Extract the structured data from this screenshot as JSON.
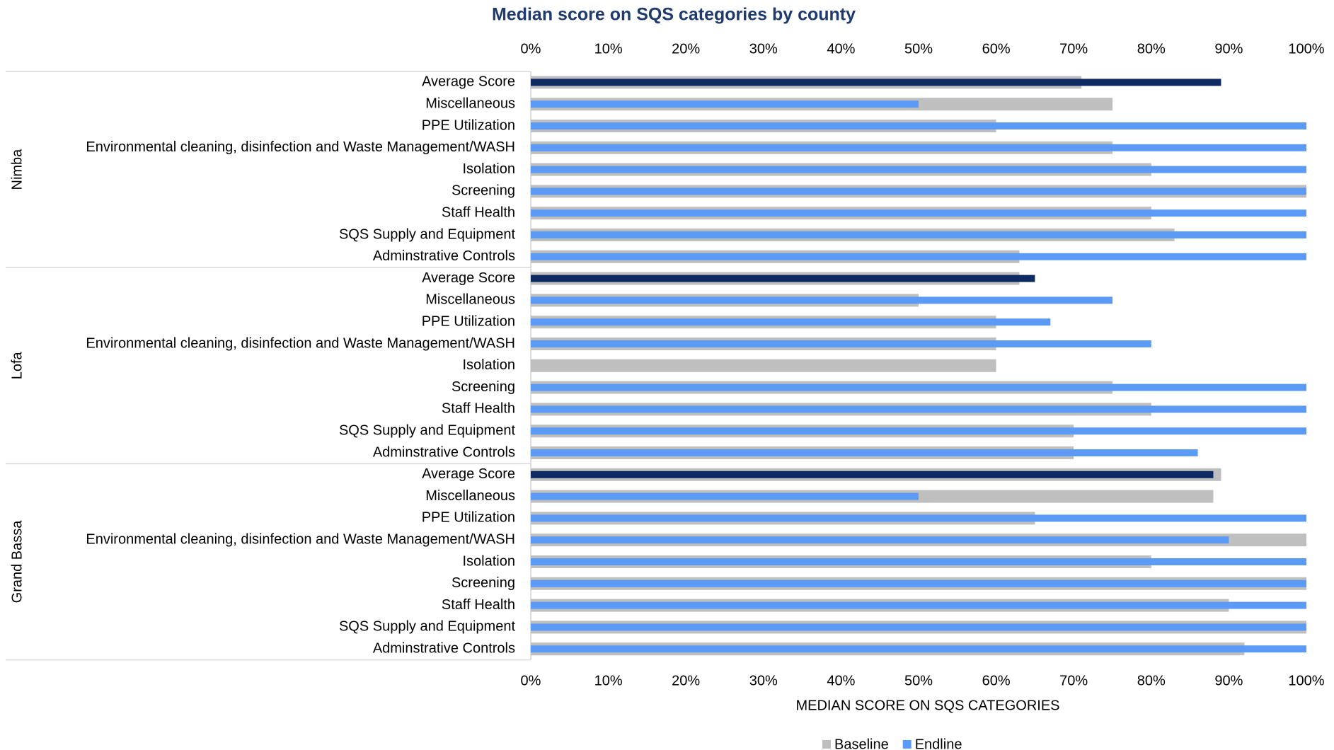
{
  "chart_data": {
    "type": "bar",
    "orientation": "horizontal",
    "title": "Median score on SQS categories by county",
    "xlabel": "MEDIAN SCORE ON SQS CATEGORIES",
    "xlim": [
      0,
      100
    ],
    "xticks": [
      {
        "value": 0,
        "label": "0%"
      },
      {
        "value": 10,
        "label": "10%"
      },
      {
        "value": 20,
        "label": "20%"
      },
      {
        "value": 30,
        "label": "30%"
      },
      {
        "value": 40,
        "label": "40%"
      },
      {
        "value": 50,
        "label": "50%"
      },
      {
        "value": 60,
        "label": "60%"
      },
      {
        "value": 70,
        "label": "70%"
      },
      {
        "value": 80,
        "label": "80%"
      },
      {
        "value": 90,
        "label": "90%"
      },
      {
        "value": 100,
        "label": "100%"
      }
    ],
    "groups": [
      {
        "name": "Nimba",
        "categories": [
          "Average Score",
          "Miscellaneous",
          "PPE Utilization",
          "Environmental cleaning, disinfection and Waste Management/WASH",
          "Isolation",
          "Screening",
          "Staff Health",
          "SQS Supply and Equipment",
          "Adminstrative Controls"
        ]
      },
      {
        "name": "Lofa",
        "categories": [
          "Average Score",
          "Miscellaneous",
          "PPE Utilization",
          "Environmental cleaning, disinfection and Waste Management/WASH",
          "Isolation",
          "Screening",
          "Staff Health",
          "SQS Supply and Equipment",
          "Adminstrative Controls"
        ]
      },
      {
        "name": "Grand Bassa",
        "categories": [
          "Average Score",
          "Miscellaneous",
          "PPE Utilization",
          "Environmental cleaning, disinfection and Waste Management/WASH",
          "Isolation",
          "Screening",
          "Staff Health",
          "SQS Supply and Equipment",
          "Adminstrative Controls"
        ]
      }
    ],
    "series": [
      {
        "name": "Baseline",
        "color": "#bfbfbf",
        "values": [
          [
            71,
            75,
            60,
            75,
            80,
            100,
            80,
            83,
            63
          ],
          [
            63,
            50,
            60,
            60,
            60,
            75,
            80,
            70,
            70
          ],
          [
            89,
            88,
            65,
            100,
            80,
            100,
            90,
            100,
            92
          ]
        ]
      },
      {
        "name": "Endline",
        "color": "#5b9bf5",
        "highlight": {
          "category_index": 0,
          "color": "#0d2a63"
        },
        "values": [
          [
            89,
            50,
            100,
            100,
            100,
            100,
            100,
            100,
            100
          ],
          [
            65,
            75,
            67,
            80,
            0,
            100,
            100,
            100,
            86
          ],
          [
            88,
            50,
            100,
            90,
            100,
            100,
            100,
            100,
            100
          ]
        ]
      }
    ],
    "legend": "bottom"
  }
}
